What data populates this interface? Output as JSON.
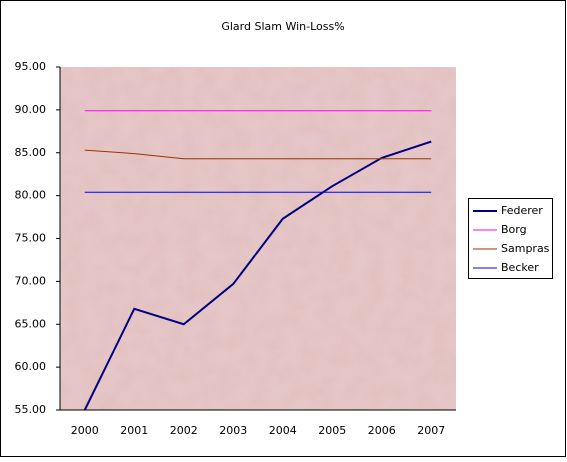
{
  "chart_data": {
    "type": "line",
    "title": "Glard Slam Win-Loss%",
    "categories": [
      "2000",
      "2001",
      "2002",
      "2003",
      "2004",
      "2005",
      "2006",
      "2007"
    ],
    "series": [
      {
        "name": "Federer",
        "color": "#000080",
        "line_width": 2,
        "values": [
          55.0,
          66.8,
          65.0,
          69.7,
          77.3,
          81.1,
          84.4,
          86.3
        ]
      },
      {
        "name": "Borg",
        "color": "#ff00ff",
        "line_width": 1,
        "values": [
          89.9,
          89.9,
          89.9,
          89.9,
          89.9,
          89.9,
          89.9,
          89.9
        ]
      },
      {
        "name": "Sampras",
        "color": "#993300",
        "line_width": 1,
        "values": [
          85.3,
          84.9,
          84.3,
          84.3,
          84.3,
          84.3,
          84.3,
          84.3
        ]
      },
      {
        "name": "Becker",
        "color": "#0000ff",
        "line_width": 1,
        "values": [
          80.4,
          80.4,
          80.4,
          80.4,
          80.4,
          80.4,
          80.4,
          80.4
        ]
      }
    ],
    "ylim": [
      55,
      95
    ],
    "yticks": [
      {
        "value": 55,
        "label": "55.00"
      },
      {
        "value": 60,
        "label": "60.00"
      },
      {
        "value": 65,
        "label": "65.00"
      },
      {
        "value": 70,
        "label": "70.00"
      },
      {
        "value": 75,
        "label": "75.00"
      },
      {
        "value": 80,
        "label": "80.00"
      },
      {
        "value": 85,
        "label": "85.00"
      },
      {
        "value": 90,
        "label": "90.00"
      },
      {
        "value": 95,
        "label": "95.00"
      }
    ],
    "legend": "right"
  }
}
